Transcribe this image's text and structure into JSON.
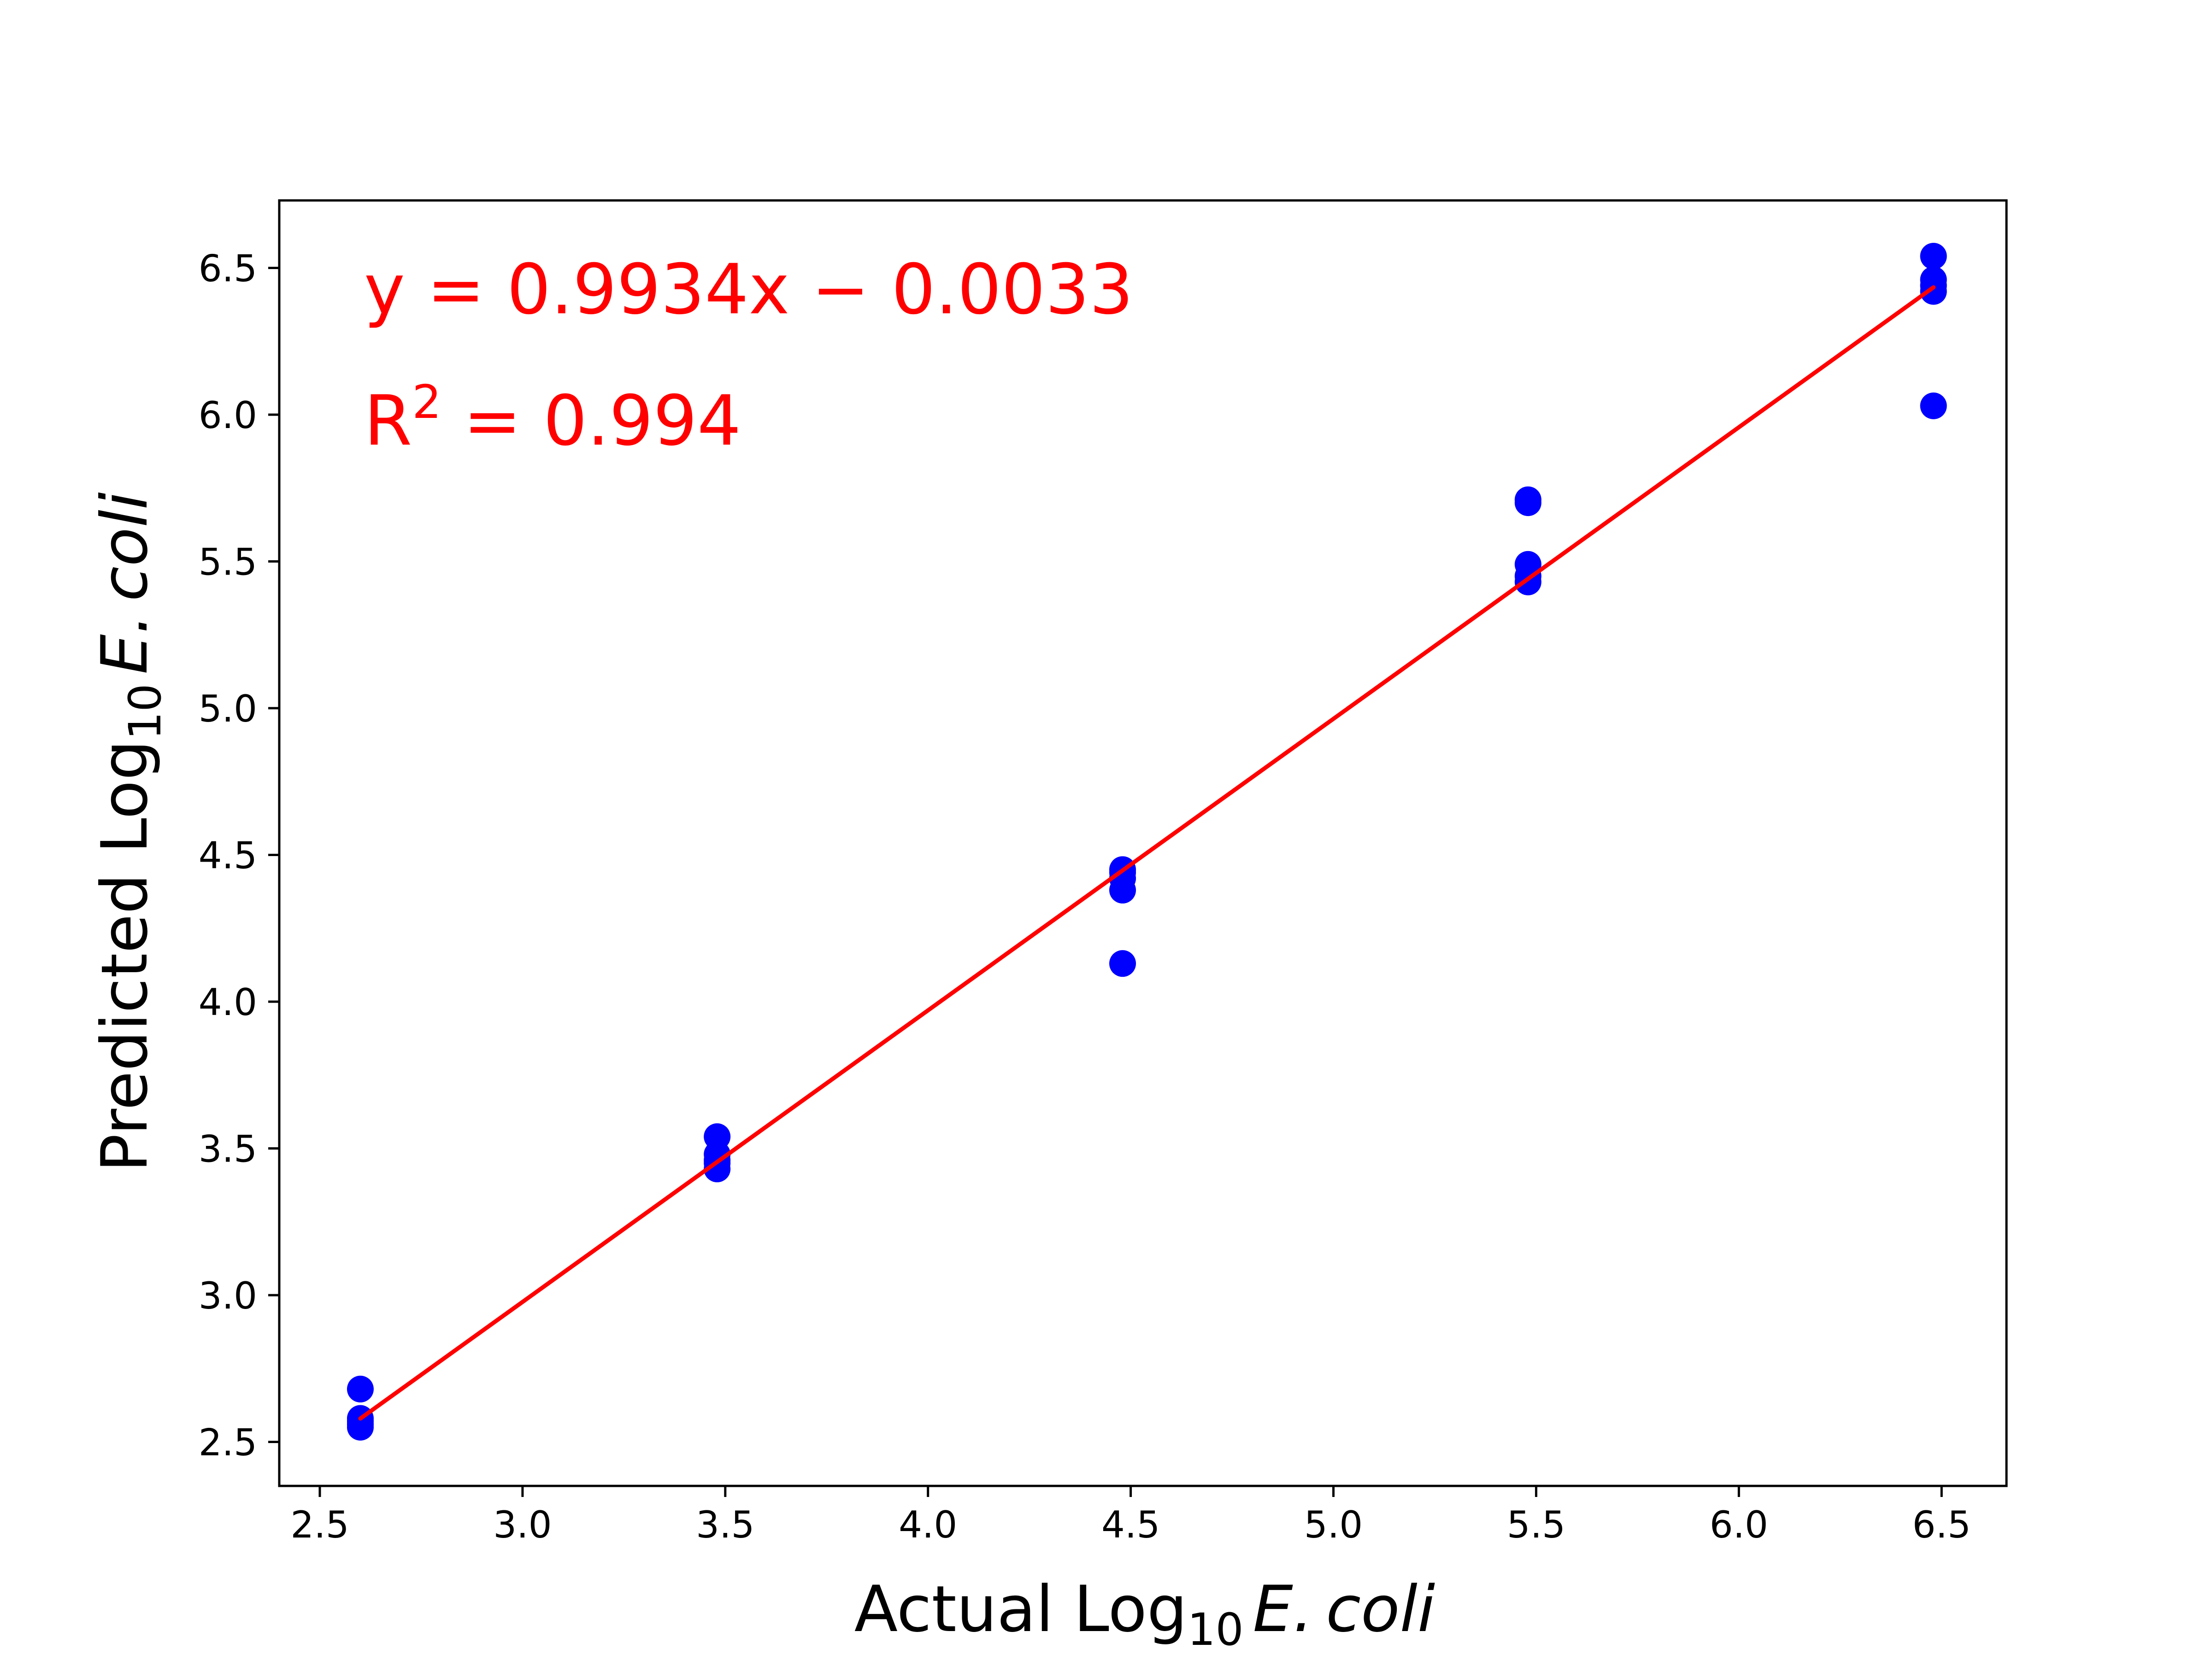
{
  "chart_data": {
    "type": "scatter",
    "title": "",
    "xlabel": {
      "prefix": "Actual Log",
      "subscript": "10",
      "italic": "E. coli"
    },
    "ylabel": {
      "prefix": "Predicted Log",
      "subscript": "10",
      "italic": "E. coli"
    },
    "xlim": [
      2.4,
      6.66
    ],
    "ylim": [
      2.35,
      6.73
    ],
    "xticks": [
      "2.5",
      "3.0",
      "3.5",
      "4.0",
      "4.5",
      "5.0",
      "5.5",
      "6.0",
      "6.5"
    ],
    "yticks": [
      "2.5",
      "3.0",
      "3.5",
      "4.0",
      "4.5",
      "5.0",
      "5.5",
      "6.0",
      "6.5"
    ],
    "grid": false,
    "series": [
      {
        "kind": "points",
        "color": "#0000ff",
        "x": [
          2.6,
          2.6,
          2.6,
          2.6,
          2.6,
          3.48,
          3.48,
          3.48,
          3.48,
          3.48,
          4.48,
          4.48,
          4.48,
          4.48,
          4.48,
          5.48,
          5.48,
          5.48,
          5.48,
          5.48,
          6.48,
          6.48,
          6.48,
          6.48,
          6.48
        ],
        "y": [
          2.68,
          2.58,
          2.56,
          2.55,
          2.57,
          3.54,
          3.48,
          3.45,
          3.43,
          3.46,
          4.45,
          4.42,
          4.38,
          4.13,
          4.44,
          5.71,
          5.7,
          5.49,
          5.45,
          5.43,
          6.54,
          6.46,
          6.42,
          6.03,
          6.44
        ]
      },
      {
        "kind": "fit-line",
        "color": "#ff0000",
        "slope": 0.9934,
        "intercept": -0.0033,
        "x_range": [
          2.6,
          6.48
        ]
      }
    ],
    "annotations": {
      "equation": "y = 0.9934x − 0.0033",
      "r2_prefix": "R",
      "r2_sup": "2",
      "r2_value": " = 0.994"
    }
  }
}
